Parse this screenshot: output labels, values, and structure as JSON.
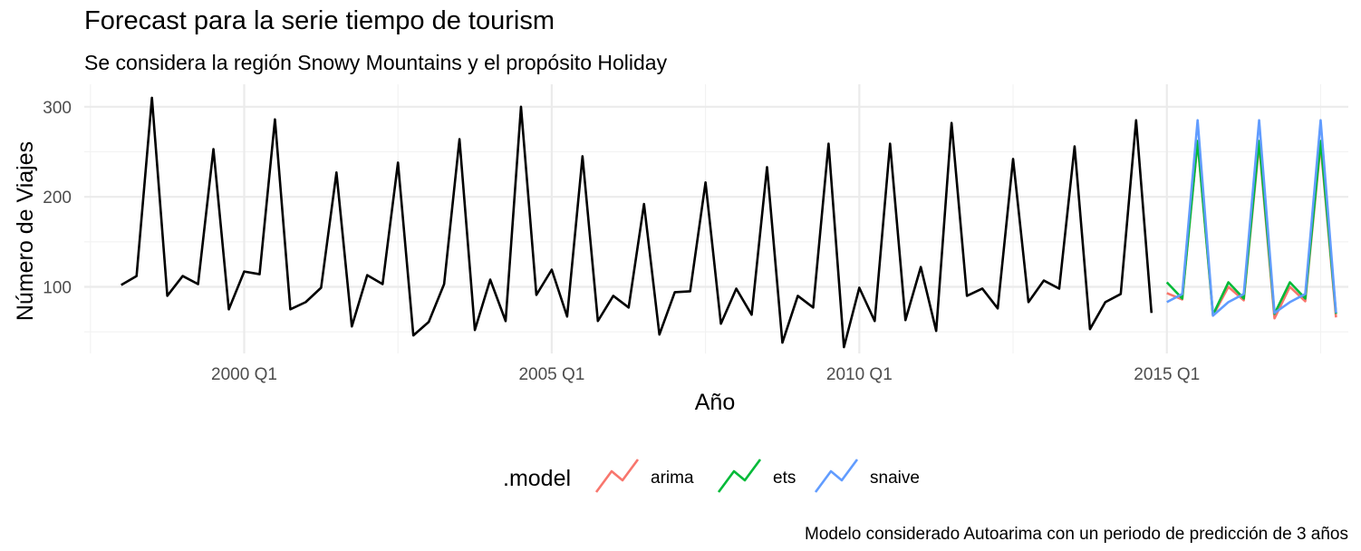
{
  "chart_data": {
    "type": "line",
    "title": "Forecast para la serie tiempo de tourism",
    "subtitle": "Se considera la región Snowy Mountains y el propósito Holiday",
    "xlabel": "Año",
    "ylabel": "Número de Viajes",
    "caption": "Modelo considerado Autoarima con un periodo de predicción de 3 años",
    "x_ticks": [
      "2000 Q1",
      "2005 Q1",
      "2010 Q1",
      "2015 Q1"
    ],
    "x_tick_years": [
      2000,
      2005,
      2010,
      2015
    ],
    "y_ticks": [
      100,
      200,
      300
    ],
    "xlim": [
      1997.4,
      2017.95
    ],
    "ylim": [
      26,
      325
    ],
    "grid": true,
    "legend": {
      "title": ".model",
      "position": "bottom",
      "entries": [
        {
          "label": "arima",
          "color": "#F8766D"
        },
        {
          "label": "ets",
          "color": "#00BA38"
        },
        {
          "label": "snaive",
          "color": "#619CFF"
        }
      ]
    },
    "history": {
      "start_year": 1998,
      "start_quarter": 1,
      "color": "#000000",
      "values": [
        102,
        112,
        310,
        90,
        112,
        103,
        253,
        75,
        117,
        114,
        286,
        75,
        83,
        99,
        227,
        56,
        113,
        103,
        238,
        46,
        61,
        103,
        264,
        52,
        108,
        62,
        300,
        91,
        119,
        67,
        245,
        62,
        90,
        77,
        192,
        47,
        94,
        95,
        216,
        59,
        98,
        69,
        233,
        38,
        90,
        77,
        259,
        33,
        99,
        62,
        259,
        63,
        122,
        51,
        282,
        90,
        98,
        76,
        242,
        83,
        107,
        98,
        256,
        53,
        83,
        92,
        285,
        71
      ]
    },
    "forecast": {
      "start_year": 2015,
      "start_quarter": 1,
      "series": [
        {
          "name": "arima",
          "color": "#F8766D",
          "values": [
            93,
            86,
            261,
            68,
            100,
            85,
            258,
            65,
            100,
            84,
            258,
            66
          ]
        },
        {
          "name": "ets",
          "color": "#00BA38",
          "values": [
            105,
            87,
            262,
            69,
            105,
            87,
            262,
            70,
            105,
            87,
            262,
            70
          ]
        },
        {
          "name": "snaive",
          "color": "#619CFF",
          "values": [
            83,
            92,
            285,
            68,
            83,
            92,
            285,
            71,
            83,
            92,
            285,
            71
          ]
        }
      ]
    }
  }
}
